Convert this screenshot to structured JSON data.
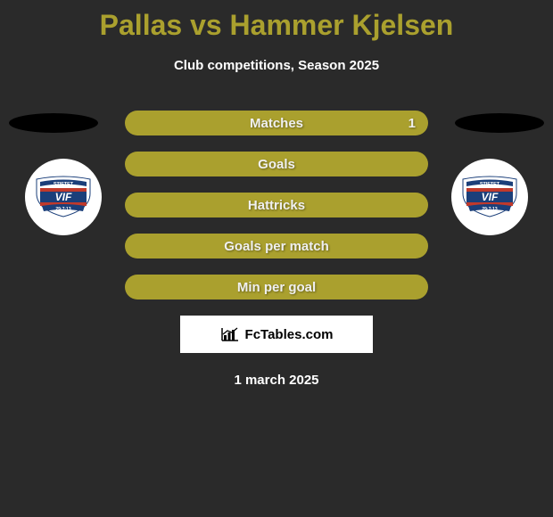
{
  "header": {
    "title": "Pallas vs Hammer Kjelsen",
    "title_color": "#aaa02e",
    "subtitle": "Club competitions, Season 2025"
  },
  "bars": {
    "background_color": "#aaa02e",
    "text_color": "#f0f0f0",
    "items": [
      {
        "label": "Matches",
        "left": "",
        "right": "1"
      },
      {
        "label": "Goals",
        "left": "",
        "right": ""
      },
      {
        "label": "Hattricks",
        "left": "",
        "right": ""
      },
      {
        "label": "Goals per match",
        "left": "",
        "right": ""
      },
      {
        "label": "Min per goal",
        "left": "",
        "right": ""
      }
    ]
  },
  "badge": {
    "top_text": "STIFTET",
    "mid_text": "VIF",
    "bottom_text": "29·7·13",
    "flag_white": "#ffffff",
    "flag_red": "#c0392b",
    "flag_blue": "#1b3f7a",
    "ribbon_color": "#1b3f7a"
  },
  "attribution": {
    "text": "FcTables.com"
  },
  "footer": {
    "date": "1 march 2025"
  },
  "layout": {
    "page_bg": "#2a2a2a",
    "shadow_color": "#000000"
  }
}
